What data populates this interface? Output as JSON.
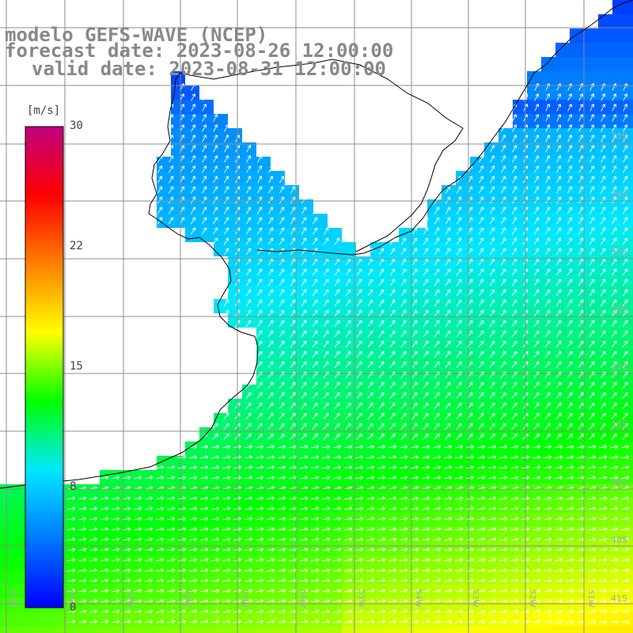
{
  "title": {
    "line1": "modelo GEFS-WAVE (NCEP)",
    "line2": "forecast date: 2023-08-26 12:00:00",
    "line3": "valid date: 2023-08-31 12:00:00"
  },
  "colorbar": {
    "unit": "[m/s]",
    "min": 0,
    "max": 30,
    "tick_labels": [
      "30",
      "22",
      "15",
      "8",
      "0"
    ],
    "tick_values": [
      30,
      22,
      15,
      8,
      0
    ],
    "colors": [
      "#0000ff",
      "#0078ff",
      "#00e8ff",
      "#00ff00",
      "#ffff00",
      "#ff8000",
      "#ff0000",
      "#c0007f"
    ]
  },
  "map": {
    "lat_labels": [
      "33S",
      "34S",
      "35S",
      "36S",
      "37S",
      "38S",
      "39S",
      "40S",
      "41S"
    ],
    "lon_labels": [
      "61W",
      "60W",
      "59W",
      "58W",
      "57W",
      "56W",
      "55W",
      "54W",
      "53W",
      "52W",
      "51W"
    ],
    "land_color": "#ffffff",
    "grid_color": "#8c8c8c",
    "coast_color": "#000000",
    "arrow_color": "#ffffff"
  }
}
